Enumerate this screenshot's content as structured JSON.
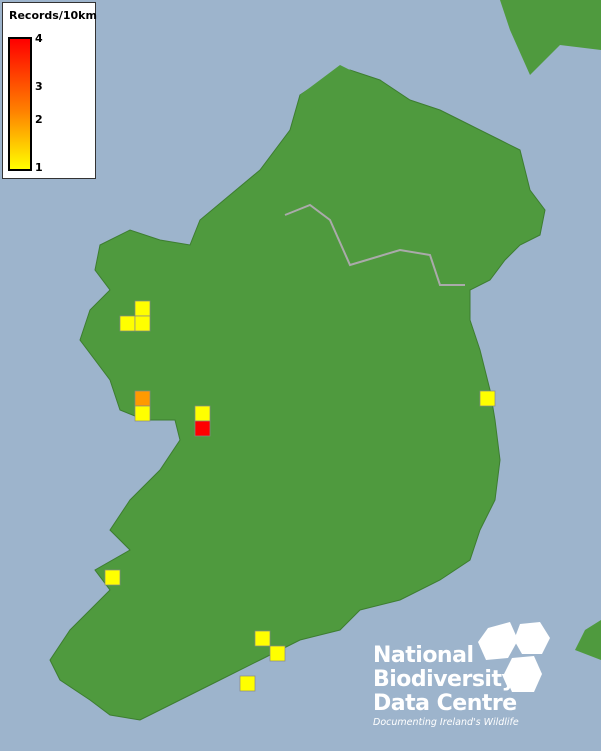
{
  "legend": {
    "title": "Records/10km",
    "ticks": [
      "4",
      "3",
      "2",
      "1"
    ],
    "color_min": "#ffff00",
    "color_max": "#ff0000"
  },
  "records": [
    {
      "value": 1
    },
    {
      "value": 1
    },
    {
      "value": 1
    },
    {
      "value": 2
    },
    {
      "value": 1
    },
    {
      "value": 1
    },
    {
      "value": 4
    },
    {
      "value": 1
    },
    {
      "value": 1
    },
    {
      "value": 1
    },
    {
      "value": 1
    },
    {
      "value": 1
    }
  ],
  "colors": {
    "sea": "#9db4cc",
    "land": "#4f9a3e",
    "record_1": "#ffff00",
    "record_2": "#ff9a00",
    "record_4": "#ff0000"
  },
  "logo": {
    "line1": "National",
    "line2": "Biodiversity",
    "line3": "Data Centre",
    "tagline": "Documenting Ireland's Wildlife"
  }
}
